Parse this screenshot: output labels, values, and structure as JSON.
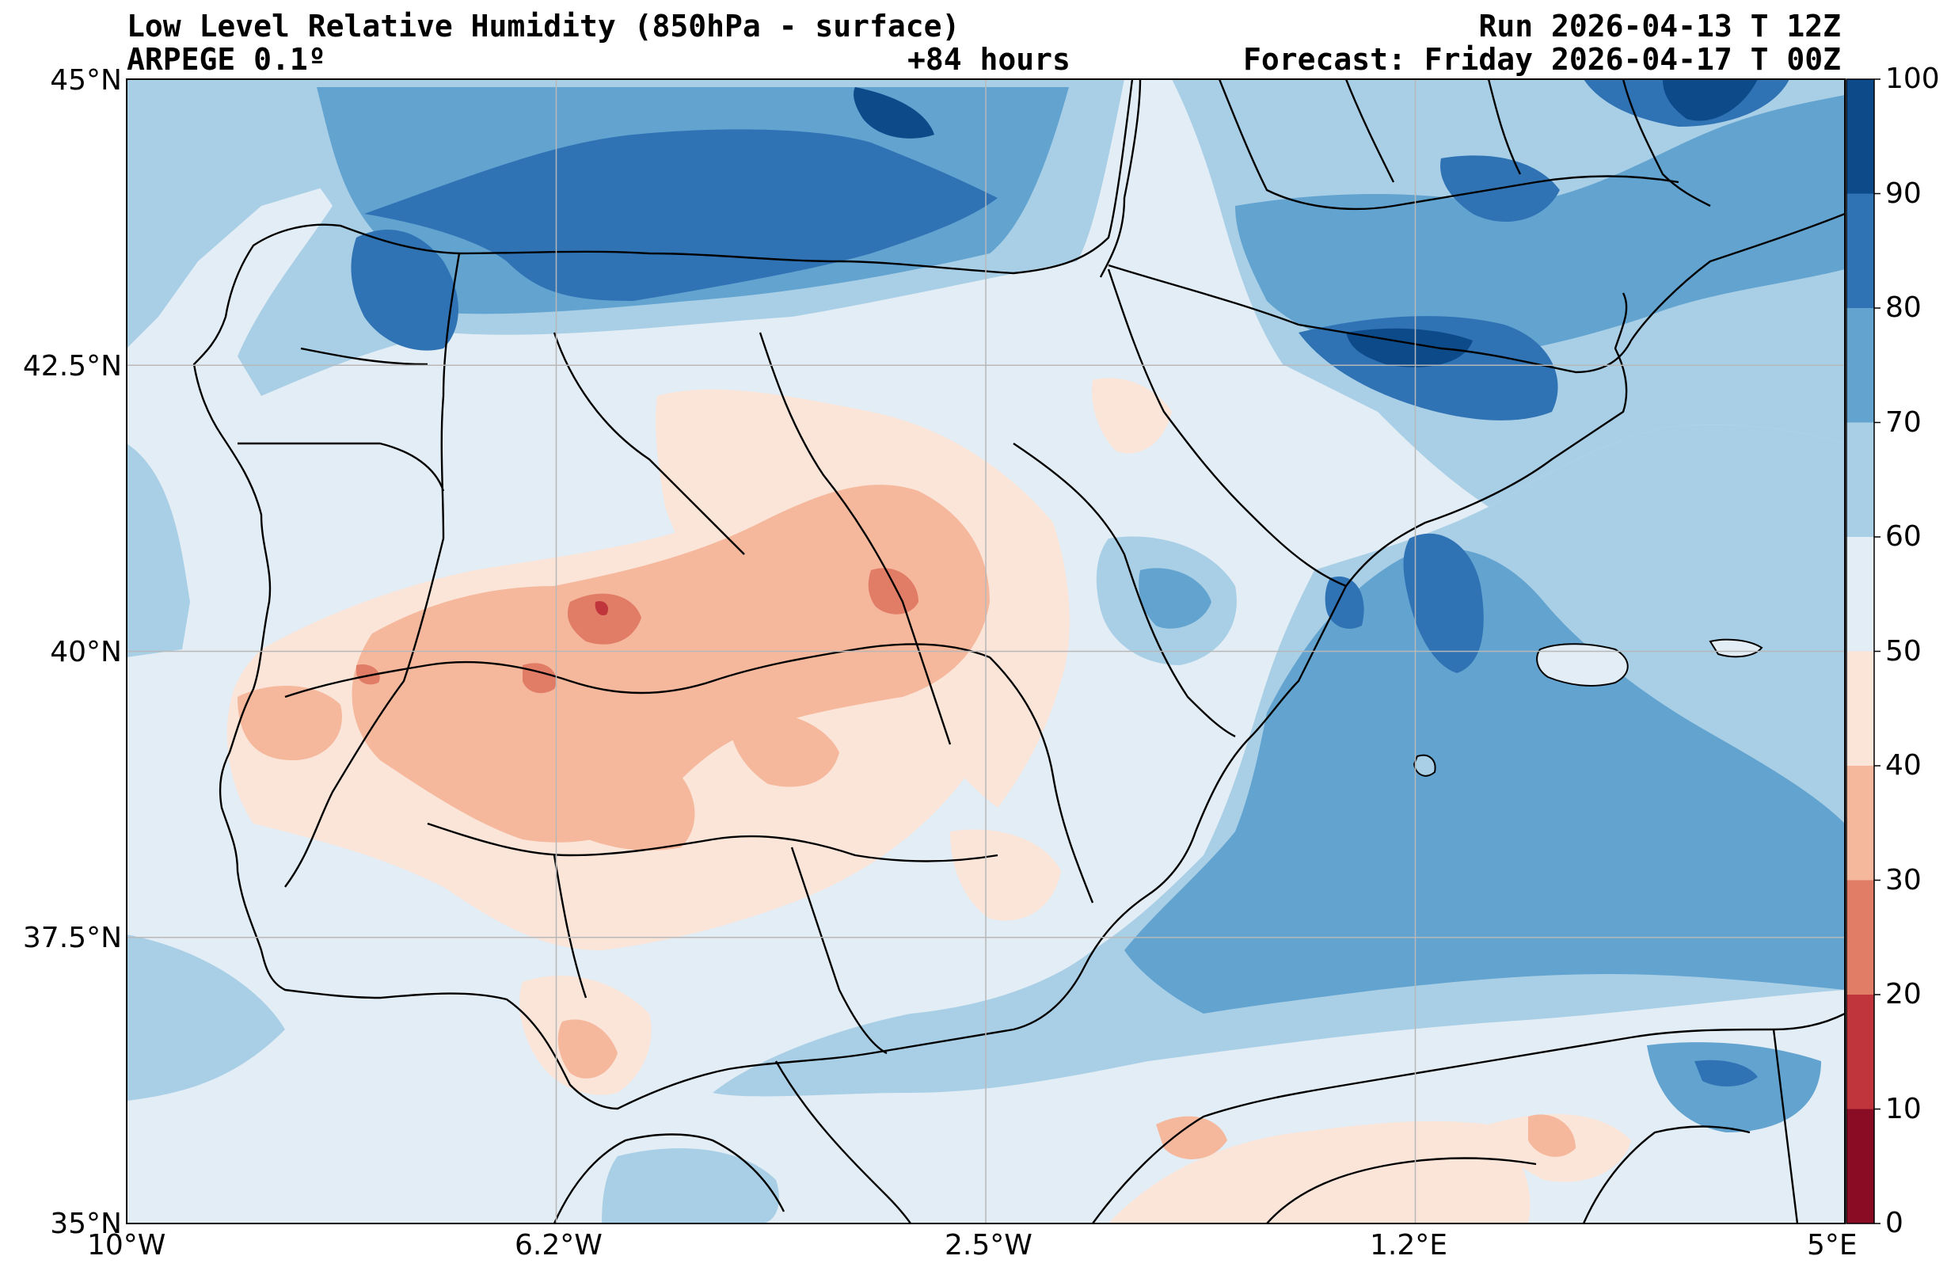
{
  "header": {
    "title_left": "Low Level Relative Humidity (850hPa - surface)",
    "subtitle_left": "ARPEGE 0.1º",
    "subtitle_center": "+84 hours",
    "title_right": "Run 2026-04-13 T 12Z",
    "subtitle_right": "Forecast: Friday 2026-04-17 T 00Z"
  },
  "axes": {
    "lat_labels": [
      "45°N",
      "42.5°N",
      "40°N",
      "37.5°N",
      "35°N"
    ],
    "lon_labels": [
      "10°W",
      "6.2°W",
      "2.5°W",
      "1.2°E",
      "5°E"
    ],
    "lat_range": [
      35,
      45
    ],
    "lon_range": [
      -10,
      5
    ]
  },
  "colorbar": {
    "labels": [
      "100",
      "90",
      "80",
      "70",
      "60",
      "50",
      "40",
      "30",
      "20",
      "10",
      "0"
    ],
    "colors": [
      "#0d4a8a",
      "#2f73b5",
      "#62a3d0",
      "#a9cfe6",
      "#e3edf5",
      "#fbe4d8",
      "#f5b89c",
      "#e17d66",
      "#c0343c",
      "#8a0c24"
    ]
  },
  "map": {
    "ocean_color": "#e3edf5",
    "grid_color": "#b8b8b8",
    "coast_color": "#000000"
  }
}
